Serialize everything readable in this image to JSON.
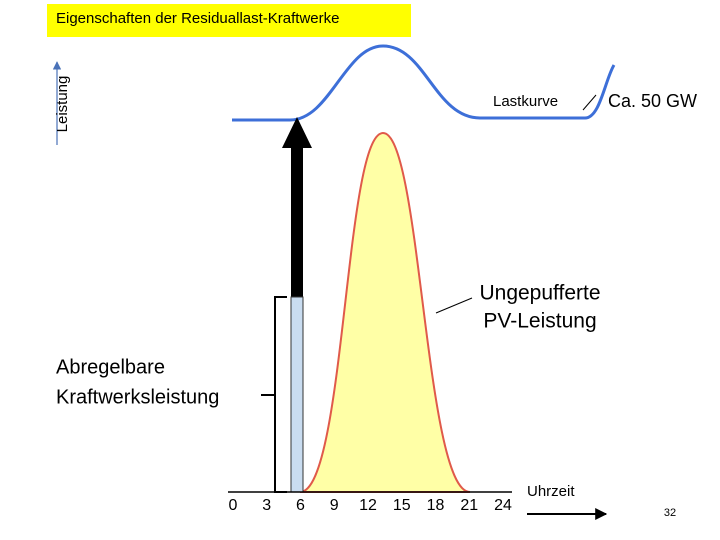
{
  "header": {
    "title": "Eigenschaften der Residuallast-Kraftwerke"
  },
  "y_axis": {
    "label": "Leistung"
  },
  "load_curve": {
    "label": "Lastkurve",
    "value_label": "Ca. 50 GW"
  },
  "pv_output": {
    "lines": [
      "Ungepufferte",
      "PV-Leistung"
    ]
  },
  "curtailable_capacity": {
    "lines": [
      "Abregelbare",
      "Kraftwerksleistung"
    ]
  },
  "x_axis": {
    "label": "Uhrzeit",
    "ticks": [
      0,
      3,
      6,
      9,
      12,
      15,
      18,
      21,
      24
    ]
  },
  "slide_number": "32"
}
